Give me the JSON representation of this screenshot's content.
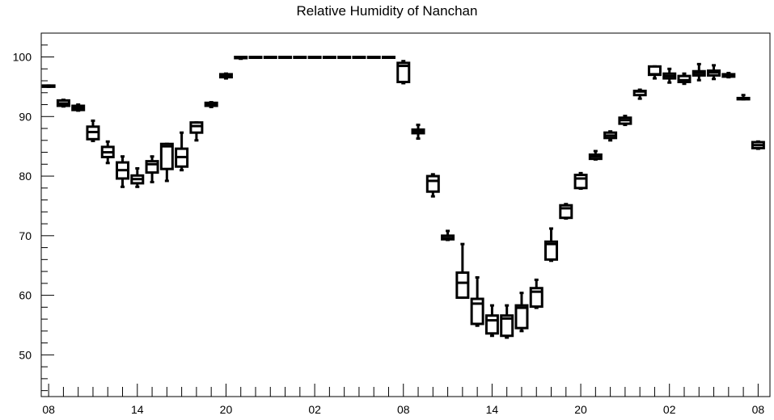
{
  "chart_data": {
    "type": "box",
    "title": "Relative Humidity of Nanchan",
    "xlabel": "",
    "ylabel": "",
    "ylim": [
      43,
      104
    ],
    "y_ticks": [
      50,
      60,
      70,
      80,
      90,
      100
    ],
    "x_tick_labels": [
      "08",
      "14",
      "20",
      "02",
      "08",
      "14",
      "20",
      "02",
      "08"
    ],
    "x_tick_hours": [
      0,
      6,
      12,
      18,
      24,
      30,
      36,
      42,
      48
    ],
    "x_range_hours": [
      -0.5,
      48.8
    ],
    "grid": false,
    "legend": "none",
    "boxes": [
      {
        "hour": 0,
        "whislo": 95.0,
        "q1": 95.0,
        "med": 95.1,
        "q3": 95.2,
        "whishi": 95.2
      },
      {
        "hour": 1,
        "whislo": 91.7,
        "q1": 91.8,
        "med": 92.2,
        "q3": 92.7,
        "whishi": 92.8
      },
      {
        "hour": 2,
        "whislo": 91.0,
        "q1": 91.1,
        "med": 91.4,
        "q3": 91.8,
        "whishi": 92.0
      },
      {
        "hour": 3,
        "whislo": 85.9,
        "q1": 86.2,
        "med": 87.4,
        "q3": 88.3,
        "whishi": 89.3
      },
      {
        "hour": 4,
        "whislo": 82.2,
        "q1": 83.2,
        "med": 84.0,
        "q3": 84.9,
        "whishi": 85.8
      },
      {
        "hour": 5,
        "whislo": 78.2,
        "q1": 79.6,
        "med": 81.0,
        "q3": 82.3,
        "whishi": 83.3
      },
      {
        "hour": 6,
        "whislo": 78.2,
        "q1": 78.8,
        "med": 79.5,
        "q3": 80.1,
        "whishi": 81.3
      },
      {
        "hour": 7,
        "whislo": 79.0,
        "q1": 80.6,
        "med": 82.0,
        "q3": 82.5,
        "whishi": 83.3
      },
      {
        "hour": 8,
        "whislo": 79.2,
        "q1": 81.2,
        "med": 85.0,
        "q3": 85.4,
        "whishi": 85.4
      },
      {
        "hour": 9,
        "whislo": 81.0,
        "q1": 81.6,
        "med": 83.2,
        "q3": 84.6,
        "whishi": 87.3
      },
      {
        "hour": 10,
        "whislo": 86.0,
        "q1": 87.3,
        "med": 88.4,
        "q3": 89.0,
        "whishi": 89.0
      },
      {
        "hour": 11,
        "whislo": 91.6,
        "q1": 91.8,
        "med": 92.0,
        "q3": 92.3,
        "whishi": 92.4
      },
      {
        "hour": 12,
        "whislo": 96.4,
        "q1": 96.6,
        "med": 96.8,
        "q3": 97.1,
        "whishi": 97.2
      },
      {
        "hour": 13,
        "whislo": 99.7,
        "q1": 99.8,
        "med": 100.0,
        "q3": 100.0,
        "whishi": 100.0
      },
      {
        "hour": 14,
        "whislo": 100.0,
        "q1": 100.0,
        "med": 100.0,
        "q3": 100.0,
        "whishi": 100.0
      },
      {
        "hour": 15,
        "whislo": 100.0,
        "q1": 100.0,
        "med": 100.0,
        "q3": 100.0,
        "whishi": 100.0
      },
      {
        "hour": 16,
        "whislo": 100.0,
        "q1": 100.0,
        "med": 100.0,
        "q3": 100.0,
        "whishi": 100.0
      },
      {
        "hour": 17,
        "whislo": 100.0,
        "q1": 100.0,
        "med": 100.0,
        "q3": 100.0,
        "whishi": 100.0
      },
      {
        "hour": 18,
        "whislo": 100.0,
        "q1": 100.0,
        "med": 100.0,
        "q3": 100.0,
        "whishi": 100.0
      },
      {
        "hour": 19,
        "whislo": 100.0,
        "q1": 100.0,
        "med": 100.0,
        "q3": 100.0,
        "whishi": 100.0
      },
      {
        "hour": 20,
        "whislo": 100.0,
        "q1": 100.0,
        "med": 100.0,
        "q3": 100.0,
        "whishi": 100.0
      },
      {
        "hour": 21,
        "whislo": 100.0,
        "q1": 100.0,
        "med": 100.0,
        "q3": 100.0,
        "whishi": 100.0
      },
      {
        "hour": 22,
        "whislo": 100.0,
        "q1": 100.0,
        "med": 100.0,
        "q3": 100.0,
        "whishi": 100.0
      },
      {
        "hour": 23,
        "whislo": 100.0,
        "q1": 100.0,
        "med": 100.0,
        "q3": 100.0,
        "whishi": 100.0
      },
      {
        "hour": 24,
        "whislo": 95.6,
        "q1": 95.8,
        "med": 98.5,
        "q3": 99.0,
        "whishi": 99.3
      },
      {
        "hour": 25,
        "whislo": 86.3,
        "q1": 87.2,
        "med": 87.6,
        "q3": 87.8,
        "whishi": 88.6
      },
      {
        "hour": 26,
        "whislo": 76.6,
        "q1": 77.4,
        "med": 79.2,
        "q3": 80.0,
        "whishi": 80.3
      },
      {
        "hour": 27,
        "whislo": 69.3,
        "q1": 69.4,
        "med": 69.6,
        "q3": 70.0,
        "whishi": 70.8
      },
      {
        "hour": 28,
        "whislo": 59.6,
        "q1": 59.6,
        "med": 62.1,
        "q3": 63.8,
        "whishi": 68.6
      },
      {
        "hour": 29,
        "whislo": 54.9,
        "q1": 55.2,
        "med": 58.6,
        "q3": 59.4,
        "whishi": 63.0
      },
      {
        "hour": 30,
        "whislo": 53.2,
        "q1": 53.6,
        "med": 55.8,
        "q3": 56.6,
        "whishi": 58.3
      },
      {
        "hour": 31,
        "whislo": 52.9,
        "q1": 53.2,
        "med": 56.1,
        "q3": 56.6,
        "whishi": 58.3
      },
      {
        "hour": 32,
        "whislo": 54.0,
        "q1": 54.5,
        "med": 57.9,
        "q3": 58.3,
        "whishi": 60.4
      },
      {
        "hour": 33,
        "whislo": 57.9,
        "q1": 58.1,
        "med": 60.6,
        "q3": 61.2,
        "whishi": 62.6
      },
      {
        "hour": 34,
        "whislo": 65.8,
        "q1": 66.0,
        "med": 68.6,
        "q3": 69.0,
        "whishi": 71.2
      },
      {
        "hour": 35,
        "whislo": 72.9,
        "q1": 73.0,
        "med": 74.6,
        "q3": 75.1,
        "whishi": 75.3
      },
      {
        "hour": 36,
        "whislo": 77.9,
        "q1": 78.0,
        "med": 79.6,
        "q3": 80.2,
        "whishi": 80.5
      },
      {
        "hour": 37,
        "whislo": 82.8,
        "q1": 82.9,
        "med": 83.3,
        "q3": 83.6,
        "whishi": 84.2
      },
      {
        "hour": 38,
        "whislo": 86.0,
        "q1": 86.4,
        "med": 86.8,
        "q3": 87.3,
        "whishi": 87.5
      },
      {
        "hour": 39,
        "whislo": 88.6,
        "q1": 88.8,
        "med": 89.4,
        "q3": 89.8,
        "whishi": 90.1
      },
      {
        "hour": 40,
        "whislo": 93.0,
        "q1": 93.6,
        "med": 94.2,
        "q3": 94.3,
        "whishi": 94.5
      },
      {
        "hour": 41,
        "whislo": 96.4,
        "q1": 97.0,
        "med": 97.1,
        "q3": 98.4,
        "whishi": 98.4
      },
      {
        "hour": 42,
        "whislo": 95.7,
        "q1": 96.4,
        "med": 96.8,
        "q3": 97.2,
        "whishi": 98.0
      },
      {
        "hour": 43,
        "whislo": 95.5,
        "q1": 95.8,
        "med": 96.1,
        "q3": 96.8,
        "whishi": 97.2
      },
      {
        "hour": 44,
        "whislo": 96.1,
        "q1": 96.9,
        "med": 97.3,
        "q3": 97.6,
        "whishi": 98.8
      },
      {
        "hour": 45,
        "whislo": 96.3,
        "q1": 96.9,
        "med": 97.4,
        "q3": 97.7,
        "whishi": 98.6
      },
      {
        "hour": 46,
        "whislo": 96.6,
        "q1": 96.7,
        "med": 96.9,
        "q3": 97.1,
        "whishi": 97.3
      },
      {
        "hour": 47,
        "whislo": 92.9,
        "q1": 92.9,
        "med": 93.0,
        "q3": 93.1,
        "whishi": 93.6
      },
      {
        "hour": 48,
        "whislo": 84.6,
        "q1": 84.7,
        "med": 85.2,
        "q3": 85.7,
        "whishi": 85.8
      }
    ]
  }
}
